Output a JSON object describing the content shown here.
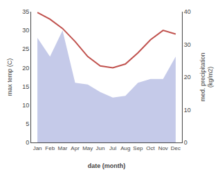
{
  "chart_data": {
    "type": "line",
    "categories": [
      "Jan",
      "Feb",
      "Mar",
      "Apr",
      "May",
      "Jun",
      "Jul",
      "Aug",
      "Sep",
      "Oct",
      "Nov",
      "Dec"
    ],
    "series": [
      {
        "type": "area",
        "color": "#c5cae9",
        "values": [
          28.0,
          23.0,
          30.0,
          16.0,
          15.5,
          13.5,
          12.0,
          12.5,
          16.0,
          17.0,
          17.0,
          23.0
        ]
      },
      {
        "type": "line",
        "color": "#c0514d",
        "values": [
          34.8,
          33.0,
          30.5,
          27.0,
          23.0,
          20.5,
          20.0,
          21.0,
          24.0,
          27.5,
          30.0,
          29.0
        ]
      }
    ],
    "xlabel": "date (month)",
    "ylabel": "max temp (C)",
    "y2label": "med. precipitation\n(kg/m2)",
    "ylim": [
      0,
      35
    ],
    "yticks": [
      0,
      5,
      10,
      15,
      20,
      25,
      30,
      35
    ],
    "y2lim": [
      0,
      40
    ],
    "y2ticks": [
      0,
      10,
      20,
      30,
      40
    ],
    "grid": false
  }
}
